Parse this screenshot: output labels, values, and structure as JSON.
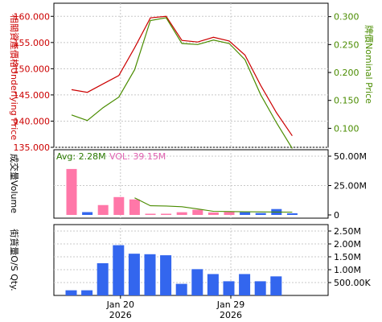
{
  "colors": {
    "underlying": "#cc0000",
    "warrant": "#4a8c00",
    "turnover_up": "#ff77a8",
    "turnover_down": "#3366ee",
    "grid": "#c8c8c8",
    "axis": "#000000",
    "avg_text": "#2a7a00",
    "vol_text": "#e060b0"
  },
  "chart_data": [
    {
      "type": "line",
      "panel": "price",
      "ylabel_left": "相關資產價格Underlying Price",
      "ylabel_right": "牌價Nominal Price",
      "yleft_ticks": [
        "135.000",
        "140.000",
        "145.000",
        "150.000",
        "155.000",
        "160.000"
      ],
      "yleft_range": [
        135,
        162.5
      ],
      "yright_ticks": [
        "0.100",
        "0.150",
        "0.200",
        "0.250",
        "0.300"
      ],
      "yright_range": [
        0.066,
        0.324
      ],
      "series": [
        {
          "role": "underlying",
          "x": [
            0,
            1,
            2,
            3,
            4,
            5,
            6,
            7,
            8,
            9,
            10,
            11,
            12,
            13,
            14
          ],
          "y": [
            146.0,
            145.5,
            147.1,
            148.7,
            154.0,
            159.7,
            160.0,
            155.4,
            155.1,
            156.0,
            155.3,
            152.6,
            146.8,
            141.6,
            137.2
          ]
        },
        {
          "role": "warrant",
          "x": [
            0,
            1,
            2,
            3,
            4,
            5,
            6,
            7,
            8,
            9,
            10,
            11,
            12,
            13,
            14
          ],
          "y": [
            0.124,
            0.114,
            0.137,
            0.156,
            0.205,
            0.293,
            0.298,
            0.252,
            0.25,
            0.258,
            0.252,
            0.223,
            0.16,
            0.11,
            0.064
          ]
        }
      ]
    },
    {
      "type": "bar",
      "panel": "turnover",
      "ylabel": "成交量Volume",
      "annotation_avg": "Avg: 2.28M",
      "annotation_vol": "VOL: 39.15M",
      "y_ticks": [
        "0",
        "25.00M",
        "50.00M"
      ],
      "y_range": [
        0,
        50
      ],
      "x": [
        0,
        1,
        2,
        3,
        4,
        5,
        6,
        7,
        8,
        9,
        10,
        11,
        12,
        13,
        14
      ],
      "values": [
        39.1,
        2.4,
        8.4,
        15.2,
        13.2,
        0.5,
        0.6,
        2.3,
        4.4,
        2.1,
        2.5,
        2.3,
        1.6,
        5.0,
        1.4
      ],
      "direction": [
        "up",
        "down",
        "up",
        "up",
        "up",
        "up",
        "up",
        "up",
        "up",
        "up",
        "up",
        "down",
        "down",
        "down",
        "down"
      ],
      "avg_line_x": [
        4,
        5,
        6,
        7,
        8,
        9,
        10,
        11,
        12,
        13,
        14
      ],
      "avg_line_y": [
        14.5,
        7.8,
        7.6,
        7.0,
        5.1,
        3.1,
        2.9,
        2.7,
        2.6,
        2.5,
        2.4
      ]
    },
    {
      "type": "bar",
      "panel": "outstanding",
      "ylabel": "街貨量O/S Qty.",
      "y_ticks": [
        "500.00K",
        "1.00M",
        "1.50M",
        "2.00M",
        "2.50M"
      ],
      "y_range": [
        0,
        2.75
      ],
      "x": [
        0,
        1,
        2,
        3,
        4,
        5,
        6,
        7,
        8,
        9,
        10,
        11,
        12,
        13,
        14
      ],
      "values": [
        0.2,
        0.2,
        1.25,
        1.95,
        1.62,
        1.6,
        1.56,
        0.45,
        1.02,
        0.83,
        0.55,
        0.83,
        0.55,
        0.74,
        0
      ],
      "x_tick_labels": [
        {
          "x": 3,
          "line1": "Jan 20",
          "line2": "2026"
        },
        {
          "x": 10,
          "line1": "Jan 29",
          "line2": "2026"
        }
      ]
    }
  ]
}
